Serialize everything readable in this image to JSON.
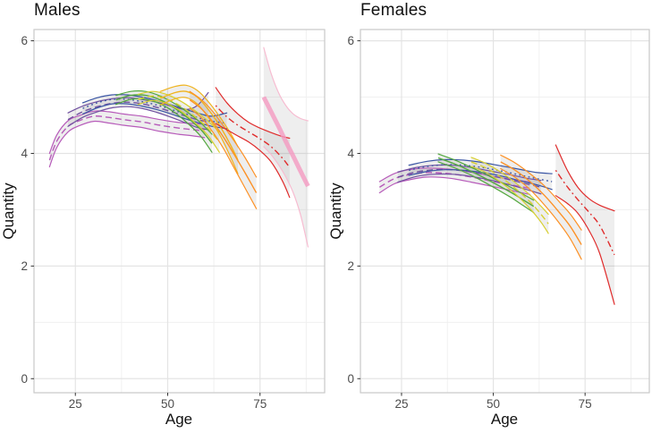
{
  "chart_data": {
    "type": "line",
    "title": "",
    "xlabel": "Age",
    "ylabel": "Quantity",
    "x_ticks": [
      25,
      50,
      75
    ],
    "x_minor": [
      37.5,
      62.5,
      87.5
    ],
    "y_ticks": [
      0,
      2,
      4,
      6
    ],
    "y_minor": [
      1,
      3,
      5
    ],
    "xlim": [
      13.8,
      92.5
    ],
    "ylim": [
      -0.25,
      6.2
    ],
    "grid": "on",
    "legend": "none",
    "description": "Cohort-specific trajectories of Quantity over Age with gray confidence ribbons, faceted by sex; each colored series is one cohort with solid upper/lower bounds and a patterned center line.",
    "facets": [
      {
        "label": "Males",
        "series": [
          {
            "name": "cohort-magenta",
            "color": "#b75bba",
            "linetype": "dashed",
            "ages": [
              18,
              20,
              23,
              26,
              30,
              34,
              38,
              43,
              48,
              53,
              57,
              60
            ],
            "center": [
              3.88,
              4.22,
              4.48,
              4.58,
              4.66,
              4.64,
              4.6,
              4.56,
              4.5,
              4.45,
              4.42,
              4.4
            ],
            "upper": [
              4.0,
              4.33,
              4.58,
              4.67,
              4.75,
              4.74,
              4.7,
              4.66,
              4.6,
              4.55,
              4.53,
              4.52
            ],
            "lower": [
              3.76,
              4.11,
              4.38,
              4.49,
              4.57,
              4.54,
              4.5,
              4.46,
              4.39,
              4.34,
              4.31,
              4.28
            ]
          },
          {
            "name": "cohort-purple",
            "color": "#7050a0",
            "linetype": "dashed",
            "ages": [
              23,
              27,
              31,
              35,
              39,
              43,
              47,
              51,
              55,
              58,
              61
            ],
            "center": [
              4.6,
              4.74,
              4.83,
              4.89,
              4.91,
              4.88,
              4.82,
              4.74,
              4.66,
              4.6,
              4.56
            ],
            "upper": [
              4.72,
              4.84,
              4.92,
              4.97,
              4.99,
              4.96,
              4.91,
              4.84,
              4.78,
              4.85,
              5.08
            ],
            "lower": [
              4.48,
              4.64,
              4.74,
              4.81,
              4.83,
              4.8,
              4.73,
              4.64,
              4.54,
              4.46,
              4.42
            ]
          },
          {
            "name": "cohort-blue",
            "color": "#3a55a4",
            "linetype": "dotted",
            "ages": [
              27,
              31,
              35,
              39,
              43,
              47,
              51,
              55,
              59,
              62,
              66
            ],
            "center": [
              4.8,
              4.9,
              4.96,
              4.96,
              4.92,
              4.86,
              4.78,
              4.7,
              4.62,
              4.57,
              4.54
            ],
            "upper": [
              4.9,
              4.99,
              5.04,
              5.04,
              5.0,
              4.94,
              4.86,
              4.78,
              4.7,
              4.66,
              4.72
            ],
            "lower": [
              4.7,
              4.81,
              4.88,
              4.88,
              4.84,
              4.78,
              4.7,
              4.61,
              4.53,
              4.48,
              4.44
            ]
          },
          {
            "name": "cohort-green",
            "color": "#53a83e",
            "linetype": "solid",
            "ages": [
              36,
              40,
              44,
              48,
              52,
              56,
              59,
              62
            ],
            "center": [
              4.95,
              5.03,
              5.03,
              4.95,
              4.8,
              4.6,
              4.42,
              4.18
            ],
            "upper": [
              5.03,
              5.1,
              5.1,
              5.02,
              4.88,
              4.7,
              4.54,
              4.34
            ],
            "lower": [
              4.87,
              4.96,
              4.96,
              4.88,
              4.72,
              4.5,
              4.3,
              4.02
            ]
          },
          {
            "name": "cohort-yellow",
            "color": "#d8d030",
            "linetype": "dashed",
            "ages": [
              42,
              46,
              50,
              54,
              58,
              61,
              64
            ],
            "center": [
              4.96,
              5.02,
              4.96,
              4.82,
              4.62,
              4.44,
              4.2
            ],
            "upper": [
              5.05,
              5.1,
              5.04,
              4.91,
              4.73,
              4.57,
              4.38
            ],
            "lower": [
              4.87,
              4.94,
              4.88,
              4.73,
              4.51,
              4.31,
              4.02
            ]
          },
          {
            "name": "cohort-gold",
            "color": "#f0b31d",
            "linetype": "solid",
            "ages": [
              48,
              52,
              55,
              58,
              61,
              64,
              67,
              69
            ],
            "center": [
              4.98,
              5.08,
              5.1,
              5.0,
              4.78,
              4.5,
              4.15,
              3.88
            ],
            "upper": [
              5.1,
              5.19,
              5.21,
              5.12,
              4.92,
              4.66,
              4.36,
              4.12
            ],
            "lower": [
              4.86,
              4.97,
              4.99,
              4.88,
              4.64,
              4.34,
              3.94,
              3.64
            ]
          },
          {
            "name": "cohort-orange",
            "color": "#fd9125",
            "linetype": "solid",
            "ages": [
              56,
              59,
              62,
              65,
              68,
              71,
              74
            ],
            "center": [
              4.95,
              4.8,
              4.58,
              4.3,
              3.98,
              3.65,
              3.3
            ],
            "upper": [
              5.1,
              4.96,
              4.76,
              4.5,
              4.22,
              3.92,
              3.58
            ],
            "lower": [
              4.8,
              4.64,
              4.4,
              4.1,
              3.74,
              3.38,
              3.02
            ]
          },
          {
            "name": "cohort-red",
            "color": "#e02c2c",
            "linetype": "dotdash",
            "ages": [
              63,
              66,
              69,
              72,
              75,
              78,
              81,
              83
            ],
            "center": [
              4.85,
              4.65,
              4.5,
              4.38,
              4.26,
              4.12,
              3.92,
              3.75
            ],
            "upper": [
              5.17,
              4.9,
              4.7,
              4.55,
              4.45,
              4.37,
              4.3,
              4.27
            ],
            "lower": [
              4.53,
              4.42,
              4.31,
              4.2,
              4.05,
              3.85,
              3.52,
              3.22
            ]
          },
          {
            "name": "overall-pink",
            "color": "#f49ac1",
            "linetype": "solid",
            "center_width": 5,
            "center_opacity": 0.8,
            "bound_color": "#f7bcd1",
            "ribbon_color": "rgba(160,160,160,0.18)",
            "ages": [
              76,
              78,
              80,
              82,
              84,
              86,
              88
            ],
            "center": [
              5.0,
              4.74,
              4.48,
              4.21,
              3.95,
              3.68,
              3.42
            ],
            "upper": [
              5.88,
              5.42,
              5.08,
              4.85,
              4.7,
              4.62,
              4.58
            ],
            "lower": [
              4.12,
              3.98,
              3.8,
              3.58,
              3.3,
              2.9,
              2.34
            ]
          }
        ]
      },
      {
        "label": "Females",
        "series": [
          {
            "name": "cohort-magenta",
            "color": "#b75bba",
            "linetype": "dashed",
            "ages": [
              19,
              23,
              27,
              32,
              38,
              44,
              50,
              55,
              60
            ],
            "center": [
              3.4,
              3.55,
              3.62,
              3.66,
              3.64,
              3.58,
              3.5,
              3.44,
              3.38
            ],
            "upper": [
              3.5,
              3.64,
              3.71,
              3.74,
              3.72,
              3.67,
              3.59,
              3.54,
              3.49
            ],
            "lower": [
              3.3,
              3.46,
              3.53,
              3.58,
              3.56,
              3.49,
              3.41,
              3.34,
              3.27
            ]
          },
          {
            "name": "cohort-purple",
            "color": "#7050a0",
            "linetype": "dashed",
            "ages": [
              24,
              29,
              34,
              39,
              44,
              49,
              54,
              59,
              63
            ],
            "center": [
              3.58,
              3.67,
              3.71,
              3.71,
              3.67,
              3.61,
              3.54,
              3.46,
              3.4
            ],
            "upper": [
              3.67,
              3.75,
              3.79,
              3.79,
              3.75,
              3.69,
              3.63,
              3.56,
              3.52
            ],
            "lower": [
              3.49,
              3.59,
              3.63,
              3.63,
              3.59,
              3.53,
              3.45,
              3.36,
              3.28
            ]
          },
          {
            "name": "cohort-blue",
            "color": "#3a55a4",
            "linetype": "dotted",
            "ages": [
              27,
              32,
              37,
              42,
              47,
              52,
              57,
              62,
              66
            ],
            "center": [
              3.7,
              3.77,
              3.8,
              3.79,
              3.75,
              3.69,
              3.62,
              3.55,
              3.5
            ],
            "upper": [
              3.79,
              3.86,
              3.89,
              3.88,
              3.84,
              3.78,
              3.72,
              3.66,
              3.64
            ],
            "lower": [
              3.61,
              3.68,
              3.71,
              3.7,
              3.66,
              3.6,
              3.52,
              3.44,
              3.36
            ]
          },
          {
            "name": "cohort-green",
            "color": "#53a83e",
            "linetype": "solid",
            "ages": [
              35,
              40,
              45,
              50,
              55,
              58,
              61
            ],
            "center": [
              3.92,
              3.8,
              3.65,
              3.48,
              3.3,
              3.18,
              3.06
            ],
            "upper": [
              3.99,
              3.87,
              3.72,
              3.56,
              3.39,
              3.28,
              3.17
            ],
            "lower": [
              3.85,
              3.73,
              3.58,
              3.4,
              3.21,
              3.08,
              2.95
            ]
          },
          {
            "name": "cohort-yellow",
            "color": "#d8d030",
            "linetype": "dashed",
            "ages": [
              44,
              48,
              52,
              56,
              60,
              63,
              65
            ],
            "center": [
              3.85,
              3.74,
              3.58,
              3.38,
              3.14,
              2.92,
              2.75
            ],
            "upper": [
              3.93,
              3.82,
              3.67,
              3.48,
              3.26,
              3.06,
              2.92
            ],
            "lower": [
              3.77,
              3.66,
              3.49,
              3.28,
              3.02,
              2.78,
              2.58
            ]
          },
          {
            "name": "cohort-orange",
            "color": "#fd9125",
            "linetype": "solid",
            "ages": [
              52,
              56,
              60,
              64,
              68,
              71,
              74
            ],
            "center": [
              3.85,
              3.7,
              3.5,
              3.25,
              2.95,
              2.7,
              2.38
            ],
            "upper": [
              3.97,
              3.83,
              3.64,
              3.42,
              3.14,
              2.92,
              2.64
            ],
            "lower": [
              3.73,
              3.57,
              3.36,
              3.08,
              2.76,
              2.48,
              2.12
            ]
          },
          {
            "name": "cohort-red",
            "color": "#e02c2c",
            "linetype": "dotdash",
            "ages": [
              67,
              70,
              73,
              76,
              79,
              83
            ],
            "center": [
              3.7,
              3.42,
              3.18,
              2.96,
              2.72,
              2.2
            ],
            "upper": [
              4.15,
              3.72,
              3.4,
              3.2,
              3.08,
              2.98
            ],
            "lower": [
              3.25,
              3.12,
              2.94,
              2.64,
              2.22,
              1.32
            ]
          }
        ]
      }
    ]
  },
  "style": {
    "background": "#ffffff",
    "grid_major": "#e4e4e4",
    "grid_minor": "#f0f0f0",
    "panel_border": "#c9c9c9",
    "tick_mark": "#333333",
    "tick_label": "#4d4d4d",
    "ribbon": "rgba(90,90,90,0.10)",
    "title_color": "#111111"
  }
}
